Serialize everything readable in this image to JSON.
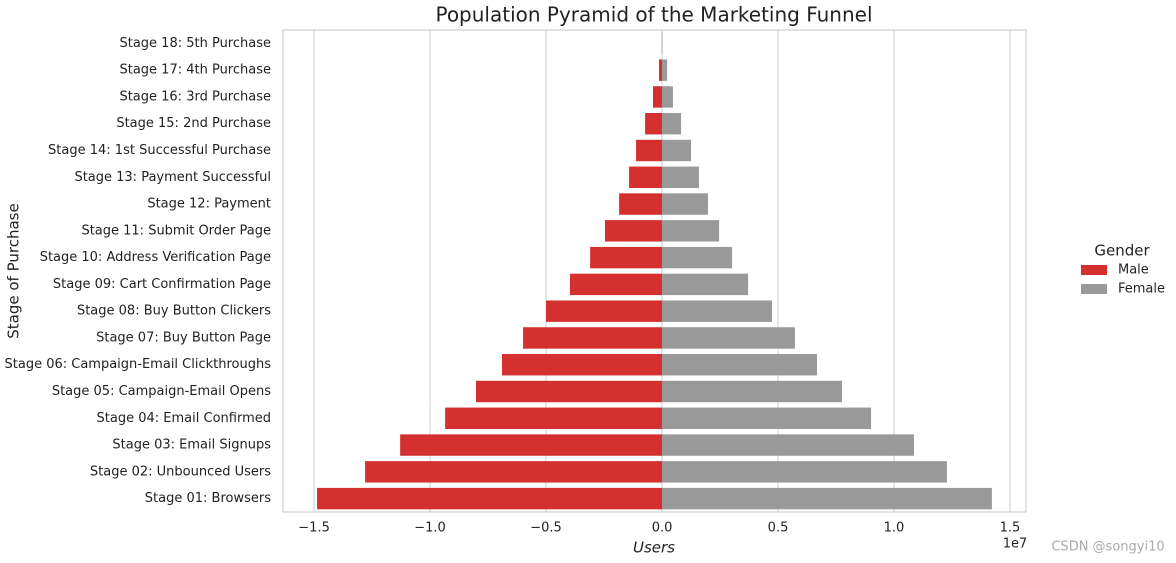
{
  "chart_data": {
    "type": "pyramid",
    "title": "Population Pyramid of the Marketing Funnel",
    "x_label": "Users",
    "y_label": "Stage of Purchase",
    "x_offset_label": "1e7",
    "legend_title": "Gender",
    "legend_position": "right",
    "grid": true,
    "watermark": "CSDN @songyi10",
    "categories": [
      "Stage 18: 5th Purchase",
      "Stage 17: 4th Purchase",
      "Stage 16: 3rd Purchase",
      "Stage 15: 2nd Purchase",
      "Stage 14: 1st Successful Purchase",
      "Stage 13: Payment Successful",
      "Stage 12: Payment",
      "Stage 11: Submit Order Page",
      "Stage 10: Address Verification Page",
      "Stage 09: Cart Confirmation Page",
      "Stage 08: Buy Button Clickers",
      "Stage 07: Buy Button Page",
      "Stage 06: Campaign-Email Clickthroughs",
      "Stage 05: Campaign-Email Opens",
      "Stage 04: Email Confirmed",
      "Stage 03: Email Signups",
      "Stage 02: Unbounced Users",
      "Stage 01: Browsers"
    ],
    "series": [
      {
        "name": "Male",
        "color": "#d3302f",
        "values": [
          -10000,
          -130000,
          -390000,
          -730000,
          -1120000,
          -1420000,
          -1850000,
          -2460000,
          -3100000,
          -3970000,
          -5000000,
          -5990000,
          -6900000,
          -8020000,
          -9350000,
          -11290000,
          -12800000,
          -14870000
        ]
      },
      {
        "name": "Female",
        "color": "#999999",
        "values": [
          10000,
          220000,
          470000,
          820000,
          1250000,
          1590000,
          1980000,
          2460000,
          3020000,
          3710000,
          4740000,
          5730000,
          6680000,
          7760000,
          9010000,
          10860000,
          12280000,
          14220000
        ]
      }
    ],
    "xlim": [
      -16340000,
      15690000
    ],
    "xticks": [
      {
        "value": -15000000,
        "label": "−1.5"
      },
      {
        "value": -10000000,
        "label": "−1.0"
      },
      {
        "value": -5000000,
        "label": "−0.5"
      },
      {
        "value": 0,
        "label": "0.0"
      },
      {
        "value": 5000000,
        "label": "0.5"
      },
      {
        "value": 10000000,
        "label": "1.0"
      },
      {
        "value": 15000000,
        "label": "1.5"
      }
    ]
  }
}
